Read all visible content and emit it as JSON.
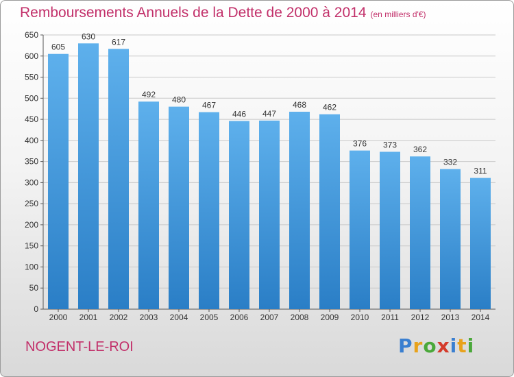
{
  "header": {
    "title": "Remboursements Annuels de la Dette de 2000 à 2014",
    "unit": "(en milliers d'€)"
  },
  "footer": {
    "city": "NOGENT-LE-ROI",
    "logo": [
      "P",
      "r",
      "o",
      "x",
      "i",
      "t",
      "i"
    ]
  },
  "colors": {
    "title": "#c2306a",
    "bar_top": "#5eb0ec",
    "bar_bottom": "#2a7ec6",
    "logo": [
      "#3a7fd0",
      "#e8a21c",
      "#4aa83a",
      "#d43a2a",
      "#3a7fd0",
      "#e8a21c",
      "#4aa83a"
    ]
  },
  "chart_data": {
    "type": "bar",
    "title": "Remboursements Annuels de la Dette de 2000 à 2014",
    "xlabel": "",
    "ylabel": "",
    "categories": [
      "2000",
      "2001",
      "2002",
      "2003",
      "2004",
      "2005",
      "2006",
      "2007",
      "2008",
      "2009",
      "2010",
      "2011",
      "2012",
      "2013",
      "2014"
    ],
    "values": [
      605,
      630,
      617,
      492,
      480,
      467,
      446,
      447,
      468,
      462,
      376,
      373,
      362,
      332,
      311
    ],
    "ylim": [
      0,
      650
    ],
    "yticks": [
      0,
      50,
      100,
      150,
      200,
      250,
      300,
      350,
      400,
      450,
      500,
      550,
      600,
      650
    ],
    "grid": true
  }
}
